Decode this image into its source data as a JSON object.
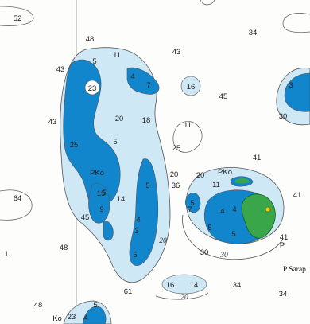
{
  "map": {
    "type": "nautical-chart",
    "colors": {
      "land": "#3aa64a",
      "deep_water": "#ffffff",
      "shallow_water": "#cfe8f6",
      "very_shallow": "#1186cc",
      "contour_line": "#555555",
      "grid_line": "#777777"
    },
    "soundings": [
      "52",
      "48",
      "11",
      "43",
      "34",
      "43",
      "5",
      "4",
      "7",
      "23",
      "16",
      "45",
      "43",
      "20",
      "18",
      "30",
      "11",
      "3",
      "25",
      "5",
      "PKo",
      "25",
      "5",
      "5",
      "14",
      "9",
      "45",
      "36",
      "20",
      "41",
      "5",
      "5",
      "4",
      "11",
      "5",
      "7",
      "4",
      "20",
      "41",
      "64",
      "15",
      "4",
      "3",
      "41",
      "PKo",
      "48",
      "5",
      "30",
      "P",
      "1",
      "61",
      "16",
      "14",
      "34",
      "34",
      "48",
      "Ko",
      "23",
      "4",
      "5"
    ],
    "contour_labels": [
      "20",
      "30",
      "20"
    ],
    "places": [
      "P Sarap"
    ]
  }
}
